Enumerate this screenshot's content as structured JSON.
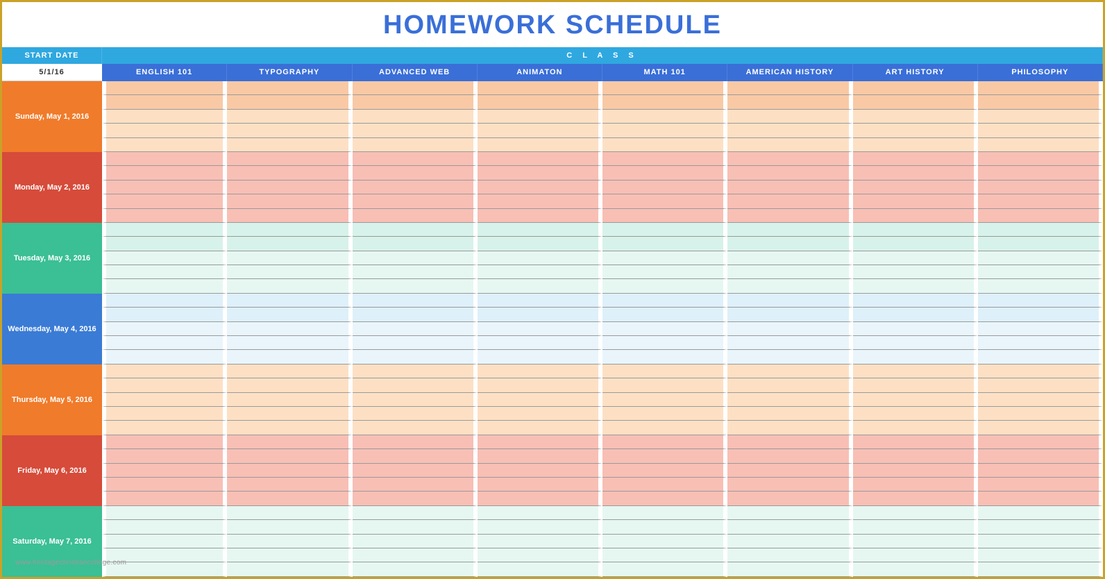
{
  "title": "HOMEWORK SCHEDULE",
  "title_color": "#3a6fd8",
  "header": {
    "start_date_label": "START DATE",
    "class_label": "C L A S S",
    "start_date_value": "5/1/16",
    "row1_bg": "#2fa8e0",
    "row2_left_bg": "#ffffff",
    "row2_col_bg": "#3a6fd8"
  },
  "columns": [
    "ENGLISH 101",
    "TYPOGRAPHY",
    "ADVANCED WEB",
    "ANIMATON",
    "MATH 101",
    "AMERICAN HISTORY",
    "ART HISTORY",
    "PHILOSOPHY"
  ],
  "days": [
    {
      "label": "Sunday, May 1, 2016",
      "label_bg": "#f07b2a",
      "row_colors": [
        "#f9c9a5",
        "#f9c9a5",
        "#fde0c4",
        "#fde0c4",
        "#fde0c4"
      ]
    },
    {
      "label": "Monday, May 2, 2016",
      "label_bg": "#d64b3a",
      "row_colors": [
        "#f8bfb5",
        "#f8bfb5",
        "#f8bfb5",
        "#f8bfb5",
        "#f8bfb5"
      ]
    },
    {
      "label": "Tuesday, May 3, 2016",
      "label_bg": "#3bbf95",
      "row_colors": [
        "#d7f2ea",
        "#d7f2ea",
        "#e6f7f1",
        "#e6f7f1",
        "#e6f7f1"
      ]
    },
    {
      "label": "Wednesday, May 4, 2016",
      "label_bg": "#3a7bd5",
      "row_colors": [
        "#def0fa",
        "#def0fa",
        "#e9f5fb",
        "#e9f5fb",
        "#e9f5fb"
      ]
    },
    {
      "label": "Thursday, May 5, 2016",
      "label_bg": "#f07b2a",
      "row_colors": [
        "#fde0c4",
        "#fde0c4",
        "#fde0c4",
        "#fde0c4",
        "#fde0c4"
      ]
    },
    {
      "label": "Friday, May 6, 2016",
      "label_bg": "#d64b3a",
      "row_colors": [
        "#f8bfb5",
        "#f8bfb5",
        "#f8bfb5",
        "#f8bfb5",
        "#f8bfb5"
      ]
    },
    {
      "label": "Saturday, May 7, 2016",
      "label_bg": "#3bbf95",
      "row_colors": [
        "#e6f7f1",
        "#e6f7f1",
        "#e6f7f1",
        "#e6f7f1",
        "#e6f7f1"
      ]
    }
  ],
  "rows_per_day": 5,
  "cell_border_color": "#9a9a9a",
  "cell_gap_color": "#ffffff",
  "watermark": "www.heritagechristiancollege.com"
}
